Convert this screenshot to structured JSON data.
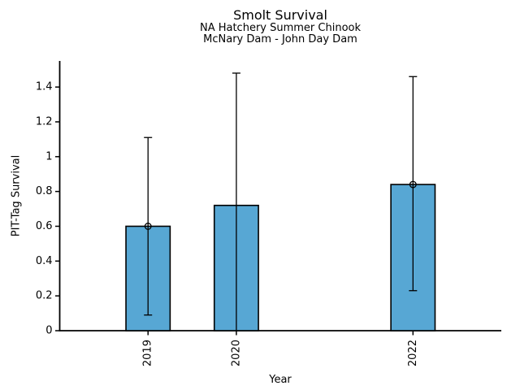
{
  "chart_data": {
    "type": "bar",
    "title": "Smolt Survival",
    "subtitle": [
      "NA Hatchery Summer Chinook",
      "McNary Dam - John Day Dam"
    ],
    "xlabel": "Year",
    "ylabel": "PIT-Tag Survival",
    "categories": [
      "2019",
      "2020",
      "2022"
    ],
    "x": [
      2019,
      2020,
      2022
    ],
    "values": [
      0.6,
      0.72,
      0.84
    ],
    "error_low": [
      0.09,
      0.0,
      0.23
    ],
    "error_high": [
      1.11,
      1.48,
      1.46
    ],
    "error_cap_low": [
      true,
      false,
      true
    ],
    "error_cap_high": [
      true,
      true,
      true
    ],
    "point_marker": [
      true,
      false,
      true
    ],
    "xlim": [
      2018,
      2023
    ],
    "ylim": [
      0,
      1.55
    ],
    "yticks": [
      0,
      0.2,
      0.4,
      0.6,
      0.8,
      1,
      1.2,
      1.4
    ],
    "ytick_labels": [
      "0",
      "0.2",
      "0.4",
      "0.6",
      "0.8",
      "1",
      "1.2",
      "1.4"
    ],
    "xtick_labels": [
      "2019",
      "2020",
      "2022"
    ],
    "xtick_rotation_deg": 90,
    "bar_width": 0.5,
    "grid": false,
    "legend": null,
    "bar_color": "#57a7d4",
    "bar_edge_color": "#000000",
    "errorbar_color": "#000000",
    "axis_color": "#000000",
    "text_color": "#000000",
    "background_color": "#ffffff"
  }
}
